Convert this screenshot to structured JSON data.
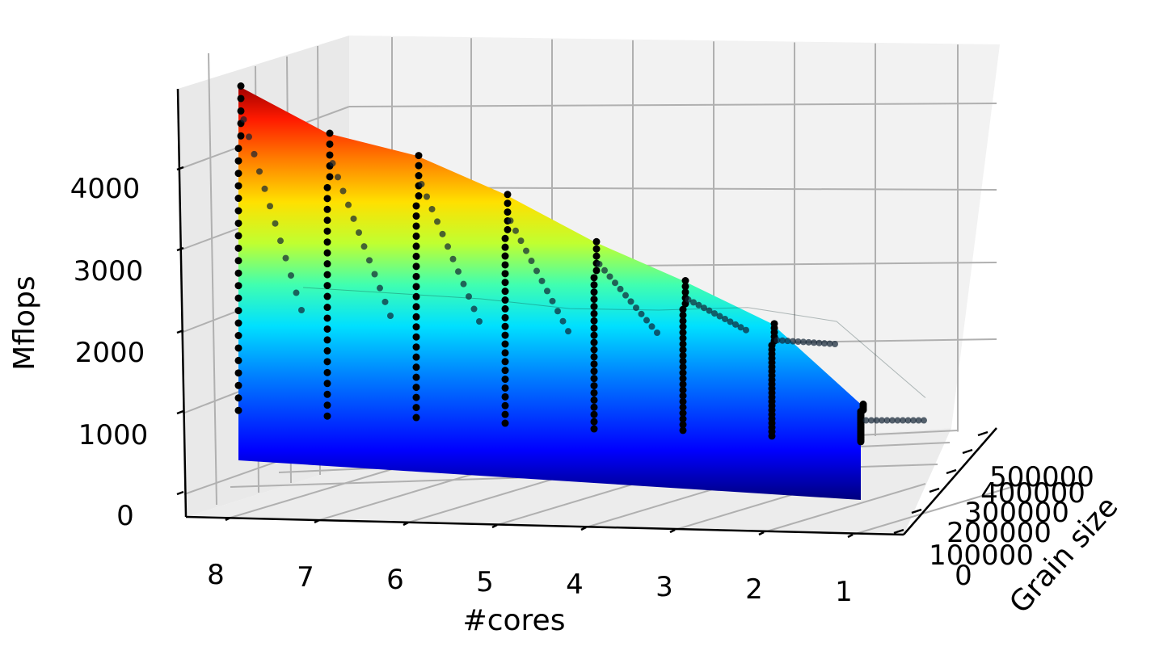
{
  "chart_data": {
    "type": "surface3d",
    "xlabel": "#cores",
    "ylabel": "Grain size",
    "zlabel": "Mflops",
    "x_ticks": [
      "8",
      "7",
      "6",
      "5",
      "4",
      "3",
      "2",
      "1"
    ],
    "y_ticks": [
      "0",
      "100000",
      "200000",
      "300000",
      "400000",
      "500000"
    ],
    "z_ticks": [
      "0",
      "1000",
      "2000",
      "3000",
      "4000"
    ],
    "xlim": [
      1,
      8
    ],
    "ylim": [
      0,
      560000
    ],
    "zlim": [
      0,
      4800
    ],
    "colormap": "jet",
    "grid": true,
    "series": [
      {
        "cores": 8,
        "peak_mflops": 4500,
        "min_mflops": 600,
        "plateau_mflops": 2000
      },
      {
        "cores": 7,
        "peak_mflops": 4000,
        "min_mflops": 600,
        "plateau_mflops": 2000
      },
      {
        "cores": 6,
        "peak_mflops": 3800,
        "min_mflops": 650,
        "plateau_mflops": 2000
      },
      {
        "cores": 5,
        "peak_mflops": 3400,
        "min_mflops": 650,
        "plateau_mflops": 1950
      },
      {
        "cores": 4,
        "peak_mflops": 2900,
        "min_mflops": 650,
        "plateau_mflops": 2000
      },
      {
        "cores": 3,
        "peak_mflops": 2500,
        "min_mflops": 700,
        "plateau_mflops": 2100
      },
      {
        "cores": 2,
        "peak_mflops": 2050,
        "min_mflops": 700,
        "plateau_mflops": 2000
      },
      {
        "cores": 1,
        "peak_mflops": 1150,
        "min_mflops": 700,
        "plateau_mflops": 1150
      }
    ]
  }
}
